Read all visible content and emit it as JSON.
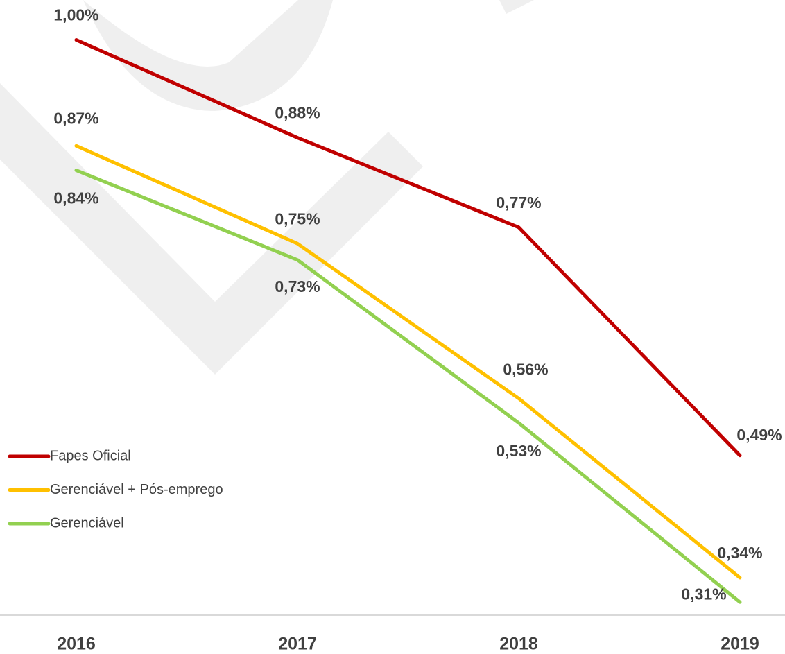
{
  "chart_data": {
    "type": "line",
    "categories": [
      "2016",
      "2017",
      "2018",
      "2019"
    ],
    "series": [
      {
        "name": "Fapes Oficial",
        "color": "#c00000",
        "values": [
          1.0,
          0.88,
          0.77,
          0.49
        ],
        "value_labels": [
          "1,00%",
          "0,88%",
          "0,77%",
          "0,49%"
        ]
      },
      {
        "name": "Gerenciável + Pós-emprego",
        "color": "#ffc000",
        "values": [
          0.87,
          0.75,
          0.56,
          0.34
        ],
        "value_labels": [
          "0,87%",
          "0,75%",
          "0,56%",
          "0,34%"
        ]
      },
      {
        "name": "Gerenciável",
        "color": "#92d050",
        "values": [
          0.84,
          0.73,
          0.53,
          0.31
        ],
        "value_labels": [
          "0,84%",
          "0,73%",
          "0,53%",
          "0,31%"
        ]
      }
    ],
    "ylim": [
      0.294,
      1.049
    ],
    "legend": "left"
  }
}
